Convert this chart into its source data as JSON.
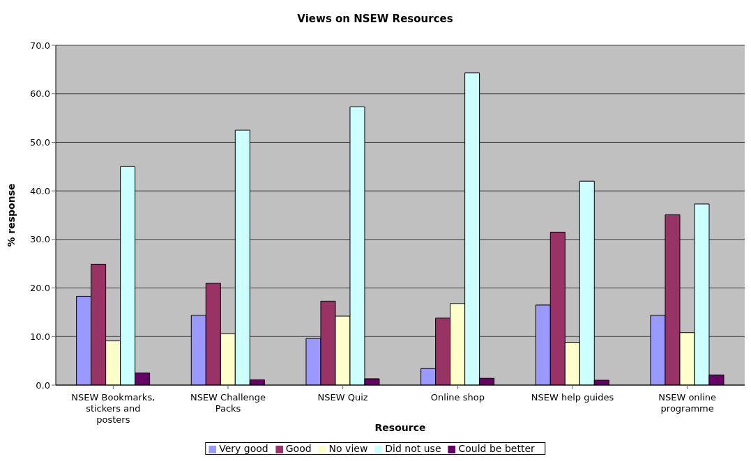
{
  "chart_data": {
    "type": "bar",
    "title": "Views on NSEW Resources",
    "xlabel": "Resource",
    "ylabel": "% response",
    "categories": [
      "NSEW Bookmarks, stickers and posters",
      "NSEW Challenge Packs",
      "NSEW Quiz",
      "Online shop",
      "NSEW help guides",
      "NSEW online programme"
    ],
    "series": [
      {
        "name": "Very good",
        "color": "#9999ff",
        "values": [
          18.3,
          14.4,
          9.6,
          3.4,
          16.5,
          14.4
        ]
      },
      {
        "name": "Good",
        "color": "#993366",
        "values": [
          24.9,
          21.0,
          17.3,
          13.8,
          31.5,
          35.1
        ]
      },
      {
        "name": "No view",
        "color": "#ffffcc",
        "values": [
          9.1,
          10.6,
          14.2,
          16.8,
          8.8,
          10.8
        ]
      },
      {
        "name": "Did not use",
        "color": "#ccffff",
        "values": [
          45.0,
          52.5,
          57.3,
          64.3,
          42.0,
          37.3
        ]
      },
      {
        "name": "Could be better",
        "color": "#660066",
        "values": [
          2.5,
          1.1,
          1.3,
          1.4,
          1.0,
          2.1
        ]
      }
    ],
    "ylim": [
      0,
      70
    ],
    "yticks": [
      {
        "value": 0,
        "label": "0.0"
      },
      {
        "value": 10,
        "label": "10.0"
      },
      {
        "value": 20,
        "label": "20.0"
      },
      {
        "value": 30,
        "label": "30.0"
      },
      {
        "value": 40,
        "label": "40.0"
      },
      {
        "value": 50,
        "label": "50.0"
      },
      {
        "value": 60,
        "label": "60.0"
      },
      {
        "value": 70,
        "label": "70.0"
      }
    ],
    "grid": "y",
    "legend": "bottom"
  }
}
